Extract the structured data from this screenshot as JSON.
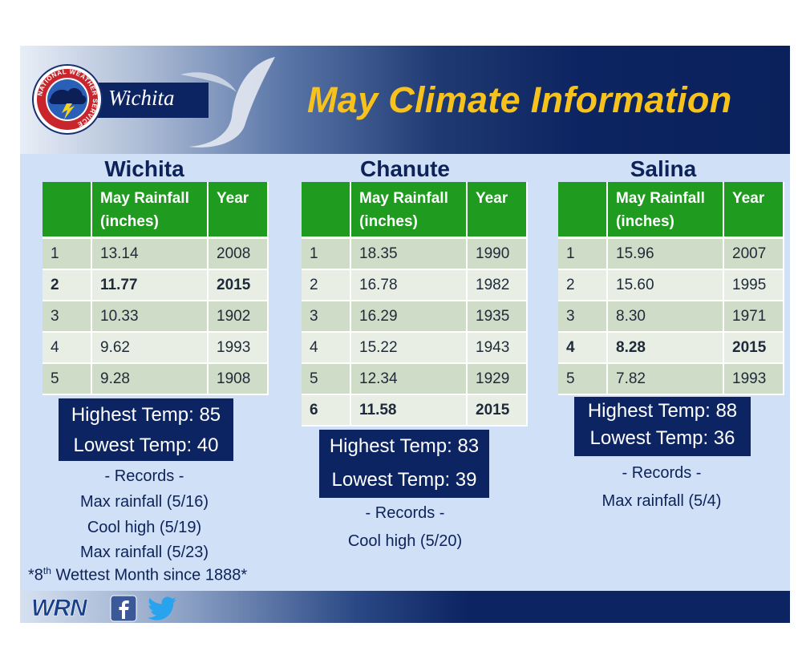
{
  "header": {
    "title": "May Climate Information",
    "office": "Wichita",
    "logo_ring_text": "NATIONAL WEATHER SERVICE"
  },
  "stations": [
    {
      "name": "Wichita",
      "columns": [
        "",
        "May Rainfall (inches)",
        "Year"
      ],
      "rows": [
        {
          "rank": "1",
          "rainfall": "13.14",
          "year": "2008",
          "bold": false
        },
        {
          "rank": "2",
          "rainfall": "11.77",
          "year": "2015",
          "bold": true
        },
        {
          "rank": "3",
          "rainfall": "10.33",
          "year": "1902",
          "bold": false
        },
        {
          "rank": "4",
          "rainfall": "9.62",
          "year": "1993",
          "bold": false
        },
        {
          "rank": "5",
          "rainfall": "9.28",
          "year": "1908",
          "bold": false
        }
      ],
      "highest_temp": "Highest Temp: 85",
      "lowest_temp": "Lowest Temp: 40",
      "records_heading": "- Records -",
      "records": [
        "Max rainfall (5/16)",
        "Cool high (5/19)",
        "Max rainfall (5/23)"
      ]
    },
    {
      "name": "Chanute",
      "columns": [
        "",
        "May Rainfall (inches)",
        "Year"
      ],
      "rows": [
        {
          "rank": "1",
          "rainfall": "18.35",
          "year": "1990",
          "bold": false
        },
        {
          "rank": "2",
          "rainfall": "16.78",
          "year": "1982",
          "bold": false
        },
        {
          "rank": "3",
          "rainfall": "16.29",
          "year": "1935",
          "bold": false
        },
        {
          "rank": "4",
          "rainfall": "15.22",
          "year": "1943",
          "bold": false
        },
        {
          "rank": "5",
          "rainfall": "12.34",
          "year": "1929",
          "bold": false
        },
        {
          "rank": "6",
          "rainfall": "11.58",
          "year": "2015",
          "bold": true
        }
      ],
      "highest_temp": "Highest Temp: 83",
      "lowest_temp": "Lowest Temp: 39",
      "records_heading": "- Records -",
      "records": [
        "Cool high (5/20)"
      ]
    },
    {
      "name": "Salina",
      "columns": [
        "",
        "May Rainfall (inches)",
        "Year"
      ],
      "rows": [
        {
          "rank": "1",
          "rainfall": "15.96",
          "year": "2007",
          "bold": false
        },
        {
          "rank": "2",
          "rainfall": "15.60",
          "year": "1995",
          "bold": false
        },
        {
          "rank": "3",
          "rainfall": "8.30",
          "year": "1971",
          "bold": false
        },
        {
          "rank": "4",
          "rainfall": "8.28",
          "year": "2015",
          "bold": true
        },
        {
          "rank": "5",
          "rainfall": "7.82",
          "year": "1993",
          "bold": false
        }
      ],
      "highest_temp": "Highest Temp: 88",
      "lowest_temp": "Lowest Temp: 36",
      "records_heading": "- Records -",
      "records": [
        "Max rainfall (5/4)"
      ]
    }
  ],
  "footnote": {
    "prefix": "*8",
    "superscript": "th",
    "suffix": " Wettest Month since 1888*"
  },
  "footer": {
    "wrn_logo_text": "WRN",
    "icons": [
      "facebook-icon",
      "twitter-icon"
    ]
  },
  "colors": {
    "title": "#f8c21d",
    "header_bg": "#0c2461",
    "table_header": "#1f9b1f",
    "slide_bg": "#cfe0f7"
  }
}
